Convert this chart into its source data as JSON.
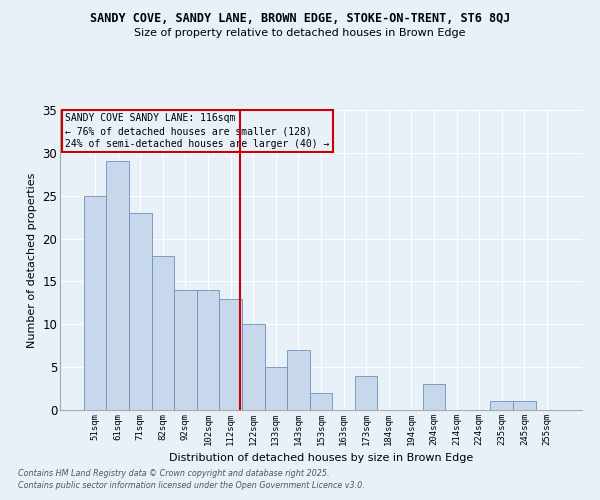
{
  "title1": "SANDY COVE, SANDY LANE, BROWN EDGE, STOKE-ON-TRENT, ST6 8QJ",
  "title2": "Size of property relative to detached houses in Brown Edge",
  "xlabel": "Distribution of detached houses by size in Brown Edge",
  "ylabel": "Number of detached properties",
  "categories": [
    "51sqm",
    "61sqm",
    "71sqm",
    "82sqm",
    "92sqm",
    "102sqm",
    "112sqm",
    "122sqm",
    "133sqm",
    "143sqm",
    "153sqm",
    "163sqm",
    "173sqm",
    "184sqm",
    "194sqm",
    "204sqm",
    "214sqm",
    "224sqm",
    "235sqm",
    "245sqm",
    "255sqm"
  ],
  "bar_heights": [
    25,
    29,
    23,
    18,
    14,
    14,
    13,
    10,
    5,
    7,
    2,
    0,
    4,
    0,
    0,
    3,
    0,
    0,
    1,
    1,
    0
  ],
  "bar_color": "#c8d8ec",
  "bar_edge_color": "#7090b8",
  "ylim": [
    0,
    35
  ],
  "yticks": [
    0,
    5,
    10,
    15,
    20,
    25,
    30,
    35
  ],
  "vline_pos": 6.4,
  "vline_color": "#cc0000",
  "annotation_title": "SANDY COVE SANDY LANE: 116sqm",
  "annotation_line1": "← 76% of detached houses are smaller (128)",
  "annotation_line2": "24% of semi-detached houses are larger (40) →",
  "annotation_box_color": "#cc0000",
  "footnote1": "Contains HM Land Registry data © Crown copyright and database right 2025.",
  "footnote2": "Contains public sector information licensed under the Open Government Licence v3.0.",
  "bg_color": "#e8f0f8",
  "grid_color": "white",
  "plot_bg": "#dce8f4"
}
